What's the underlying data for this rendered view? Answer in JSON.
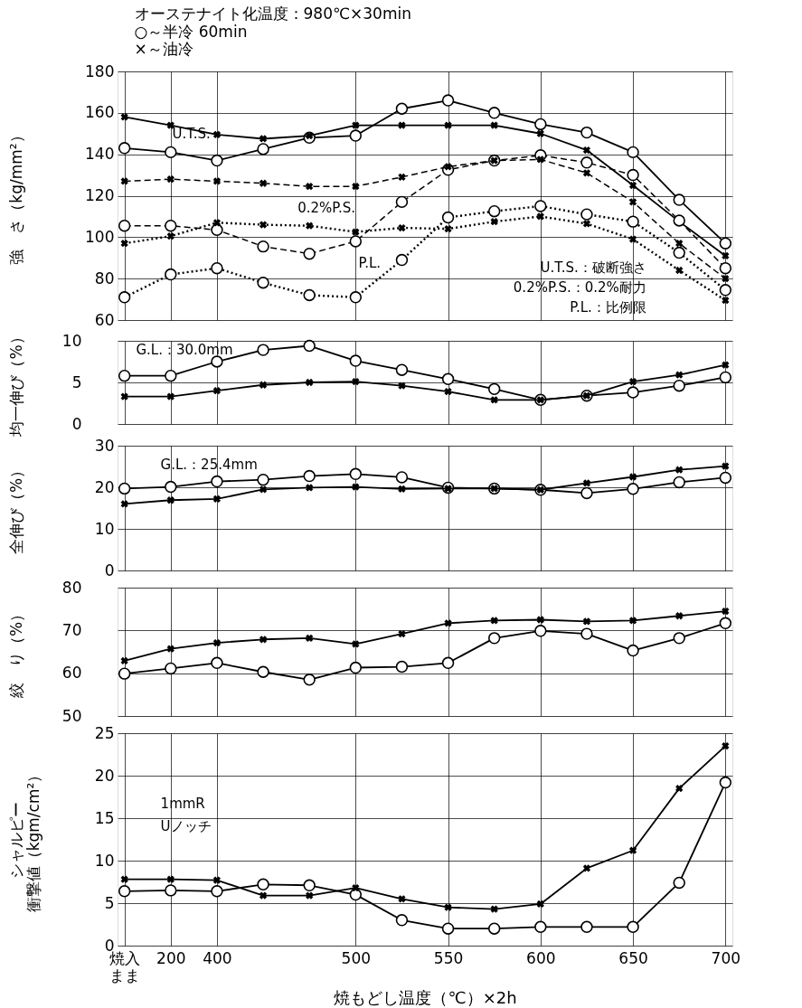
{
  "chart_data": [
    {
      "type": "line",
      "title": "オーステナイト化温度：980℃×30min",
      "subtitle": "○～半冷 60min\n×～油冷",
      "ylabel": "強　さ（kg/mm²）",
      "grid": true,
      "tick_labels": "y",
      "categories": [
        null,
        null,
        null,
        null,
        null,
        null,
        null,
        null,
        null,
        null,
        null,
        null,
        null,
        null
      ],
      "ylim": [
        60,
        180
      ],
      "yticks": [
        60,
        80,
        100,
        120,
        140,
        160,
        180
      ],
      "series": [
        {
          "color": "#000000",
          "marker": "circle",
          "line_style": "solid",
          "values": [
            143,
            141,
            137,
            142.5,
            148,
            149,
            162,
            166,
            160,
            154.5,
            150.5,
            141,
            118,
            97
          ]
        },
        {
          "color": "#000000",
          "marker": "cross",
          "line_style": "solid",
          "values": [
            158,
            154,
            149.5,
            147.5,
            149,
            154,
            154,
            154,
            154,
            150,
            142,
            125,
            107.5,
            91
          ]
        },
        {
          "color": "#000000",
          "marker": "circle",
          "line_style": "dashed",
          "values": [
            105.5,
            105.5,
            103.5,
            95.5,
            92,
            98,
            117,
            132.5,
            137,
            139.5,
            136,
            130,
            108,
            85
          ]
        },
        {
          "color": "#000000",
          "marker": "cross",
          "line_style": "dashed",
          "values": [
            127,
            128,
            127,
            126,
            124.5,
            124.5,
            129,
            134,
            137,
            137.5,
            131,
            117,
            97,
            80
          ]
        },
        {
          "color": "#000000",
          "marker": "circle",
          "line_style": "dotted",
          "values": [
            71,
            82,
            85,
            78,
            72,
            71,
            89,
            109.5,
            112.5,
            115,
            111,
            107.5,
            92.5,
            74.5
          ]
        },
        {
          "color": "#000000",
          "marker": "cross",
          "line_style": "dotted",
          "values": [
            97,
            100.5,
            107,
            106,
            105.5,
            102.5,
            104.5,
            104,
            107.5,
            110,
            106.5,
            99,
            84,
            69.5
          ]
        }
      ],
      "annotations": [
        "U.T.S.",
        "0.2%P.S.",
        "P.L.",
        "U.T.S.：破断強さ",
        "0.2%P.S.：0.2%耐力",
        "P.L.：比例限"
      ]
    },
    {
      "type": "line",
      "ylabel": "均一伸び（%）",
      "grid": true,
      "tick_labels": "y",
      "categories": [
        null,
        null,
        null,
        null,
        null,
        null,
        null,
        null,
        null,
        null,
        null,
        null,
        null,
        null
      ],
      "ylim": [
        0,
        10
      ],
      "yticks": [
        0,
        5,
        10
      ],
      "series": [
        {
          "color": "#000000",
          "marker": "circle",
          "line_style": "solid",
          "values": [
            5.8,
            5.8,
            7.5,
            8.9,
            9.4,
            7.6,
            6.5,
            5.4,
            4.2,
            2.9,
            3.4,
            3.8,
            4.6,
            5.6
          ]
        },
        {
          "color": "#000000",
          "marker": "cross",
          "line_style": "solid",
          "values": [
            3.3,
            3.3,
            4.0,
            4.7,
            5.0,
            5.1,
            4.6,
            3.9,
            2.9,
            2.9,
            3.4,
            5.1,
            5.9,
            7.1
          ]
        }
      ],
      "annotations": [
        "G.L.：30.0mm"
      ]
    },
    {
      "type": "line",
      "ylabel": "全伸び（%）",
      "grid": true,
      "tick_labels": "y",
      "categories": [
        null,
        null,
        null,
        null,
        null,
        null,
        null,
        null,
        null,
        null,
        null,
        null,
        null,
        null
      ],
      "ylim": [
        0,
        30
      ],
      "yticks": [
        0,
        10,
        20,
        30
      ],
      "series": [
        {
          "color": "#000000",
          "marker": "circle",
          "line_style": "solid",
          "values": [
            19.7,
            20.1,
            21.4,
            21.8,
            22.7,
            23.2,
            22.4,
            19.9,
            19.7,
            19.4,
            18.6,
            19.6,
            21.2,
            22.3
          ]
        },
        {
          "color": "#000000",
          "marker": "cross",
          "line_style": "solid",
          "values": [
            16.0,
            16.9,
            17.2,
            19.5,
            19.9,
            20.1,
            19.6,
            19.7,
            19.7,
            19.4,
            21.0,
            22.5,
            24.2,
            25.1
          ]
        }
      ],
      "annotations": [
        "G.L.：25.4mm"
      ]
    },
    {
      "type": "line",
      "ylabel": "絞　り（%）",
      "grid": true,
      "tick_labels": "y",
      "categories": [
        null,
        null,
        null,
        null,
        null,
        null,
        null,
        null,
        null,
        null,
        null,
        null,
        null,
        null
      ],
      "ylim": [
        50,
        80
      ],
      "yticks": [
        50,
        60,
        70,
        80
      ],
      "series": [
        {
          "color": "#000000",
          "marker": "circle",
          "line_style": "solid",
          "values": [
            59.9,
            61.1,
            62.4,
            60.3,
            58.5,
            61.3,
            61.5,
            62.4,
            68.2,
            69.9,
            69.2,
            65.3,
            68.2,
            71.7
          ]
        },
        {
          "color": "#000000",
          "marker": "cross",
          "line_style": "solid",
          "values": [
            62.9,
            65.7,
            67.1,
            67.9,
            68.2,
            66.8,
            69.2,
            71.7,
            72.3,
            72.5,
            72.1,
            72.3,
            73.4,
            74.5
          ]
        }
      ]
    },
    {
      "type": "line",
      "ylabel": "シャルピー衝撃値（kgm/cm²）",
      "xlabel": "焼もどし温度（℃）×2h",
      "grid": true,
      "categories": [
        "焼入まま",
        "200",
        "400",
        null,
        null,
        "500",
        null,
        "550",
        null,
        "600",
        null,
        "650",
        null,
        "700"
      ],
      "ylim": [
        0,
        25
      ],
      "yticks": [
        0,
        5,
        10,
        15,
        20,
        25
      ],
      "series": [
        {
          "color": "#000000",
          "marker": "circle",
          "line_style": "solid",
          "values": [
            6.4,
            6.5,
            6.4,
            7.2,
            7.1,
            6.0,
            3.0,
            2.0,
            2.0,
            2.2,
            2.2,
            2.2,
            7.4,
            19.2
          ]
        },
        {
          "color": "#000000",
          "marker": "cross",
          "line_style": "solid",
          "values": [
            7.8,
            7.8,
            7.7,
            5.9,
            5.9,
            6.8,
            5.5,
            4.5,
            4.3,
            4.9,
            9.1,
            11.2,
            18.5,
            23.5
          ]
        }
      ],
      "annotations": [
        "1mmR",
        "Uノッチ"
      ]
    }
  ]
}
